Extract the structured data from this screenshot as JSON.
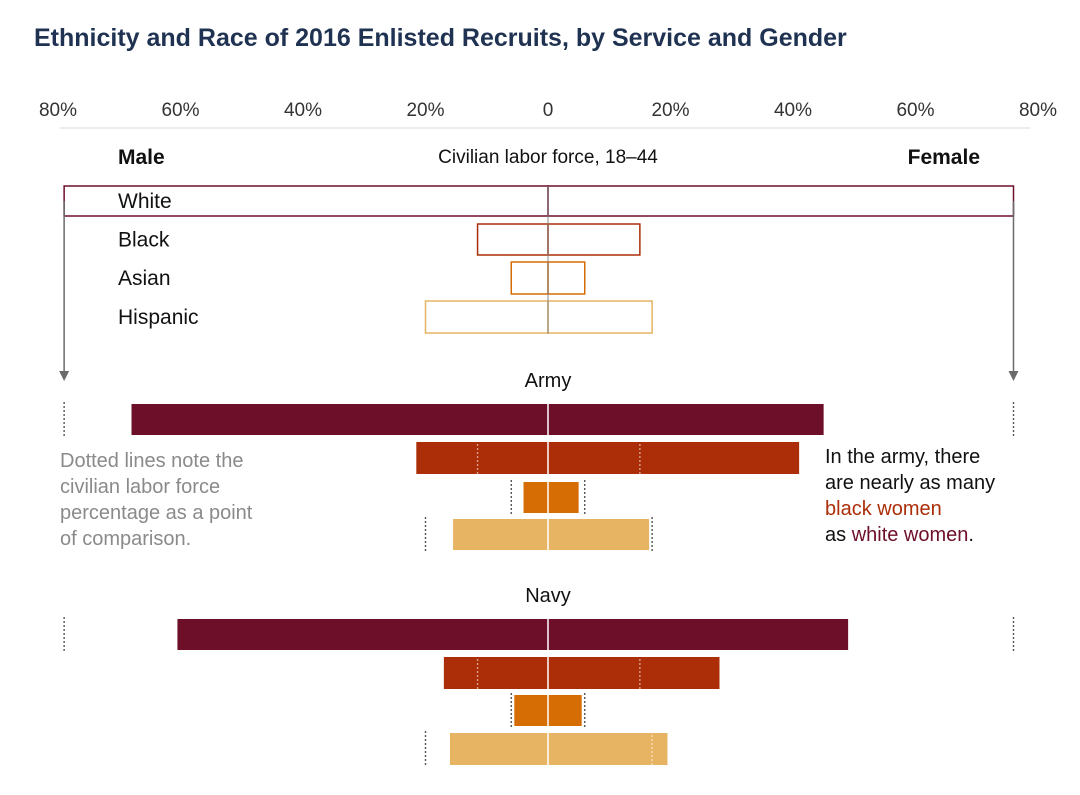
{
  "chart_data": {
    "type": "bar",
    "title": "Ethnicity and Race of 2016 Enlisted Recruits, by Service and Gender",
    "orientation": "horizontal-diverging",
    "x_ticks": [
      "80%",
      "60%",
      "40%",
      "20%",
      "0",
      "20%",
      "40%",
      "60%",
      "80%"
    ],
    "xlim": [
      -80,
      80
    ],
    "left_label": "Male",
    "right_label": "Female",
    "colors": {
      "White": "#6d0f28",
      "Black": "#ab2e08",
      "Asian": "#d66d04",
      "Hispanic": "#e6b463"
    },
    "categories": [
      "White",
      "Black",
      "Asian",
      "Hispanic"
    ],
    "civilian": {
      "label": "Civilian labor force, 18–44",
      "male": [
        79,
        11.5,
        6,
        20
      ],
      "female": [
        76,
        15,
        6,
        17
      ]
    },
    "services": [
      {
        "name": "Army",
        "male": [
          68,
          21.5,
          4,
          15.5
        ],
        "female": [
          45,
          41,
          5,
          16.5
        ]
      },
      {
        "name": "Navy",
        "male": [
          60.5,
          17,
          5.5,
          16
        ],
        "female": [
          49,
          28,
          5.5,
          19.5
        ]
      }
    ],
    "annotations": {
      "dotted_note": [
        "Dotted lines note the",
        "civilian labor force",
        "percentage as a point",
        "of comparison."
      ],
      "callout": {
        "line1": "In the army, there",
        "line2": "are nearly as many",
        "line3": "black women",
        "line4_prefix": "as ",
        "line4_highlight": "white women",
        "line4_suffix": "."
      }
    }
  }
}
